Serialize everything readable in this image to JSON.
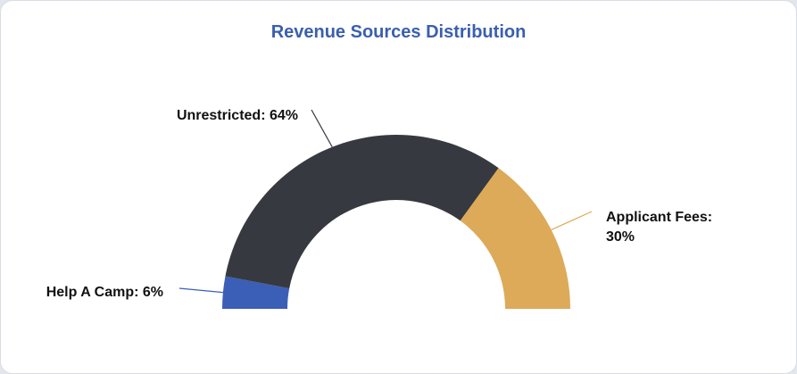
{
  "chart_data": {
    "type": "pie",
    "subtype": "semi-donut",
    "title": "Revenue Sources Distribution",
    "slices": [
      {
        "label": "Help A Camp",
        "value": 6,
        "color": "#3b5fb6",
        "text_lines": [
          "Help A Camp: 6%"
        ]
      },
      {
        "label": "Unrestricted",
        "value": 64,
        "color": "#363a40",
        "text_lines": [
          "Unrestricted: 64%"
        ]
      },
      {
        "label": "Applicant Fees",
        "value": 30,
        "color": "#dcaa58",
        "text_lines": [
          "Applicant Fees:",
          "30%"
        ]
      }
    ],
    "unit": "%",
    "legend": "none"
  }
}
